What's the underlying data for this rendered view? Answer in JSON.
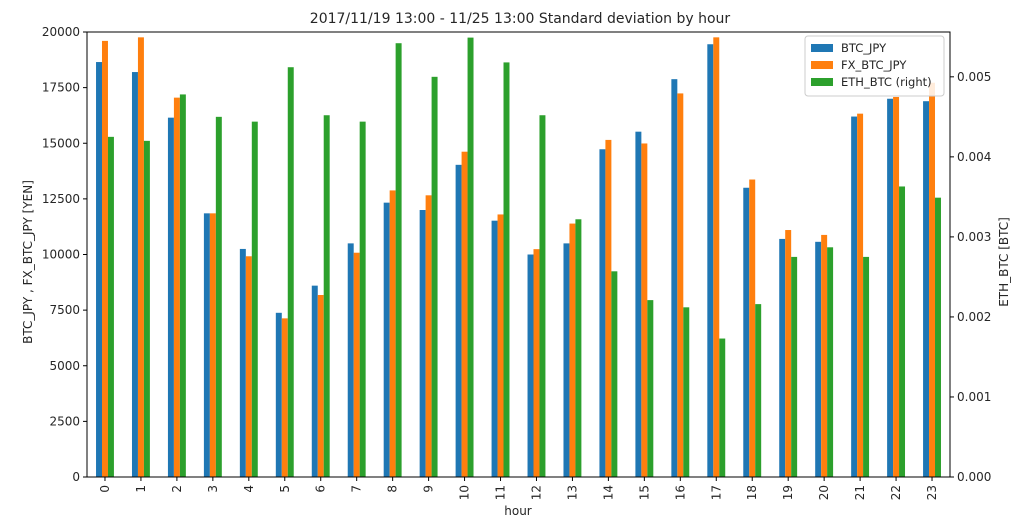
{
  "chart_data": {
    "type": "bar",
    "title": "2017/11/19 13:00 - 11/25 13:00 Standard deviation by hour",
    "xlabel": "hour",
    "ylabel": "BTC_JPY , FX_BTC_JPY [YEN]",
    "y2label": "ETH_BTC [BTC]",
    "ylim": [
      0,
      20000
    ],
    "y2lim": [
      0,
      0.00556
    ],
    "yticks": [
      0,
      2500,
      5000,
      7500,
      10000,
      12500,
      15000,
      17500,
      20000
    ],
    "y2ticks": [
      0.0,
      0.001,
      0.002,
      0.003,
      0.004,
      0.005
    ],
    "y2tick_labels": [
      "0.000",
      "0.001",
      "0.002",
      "0.003",
      "0.004",
      "0.005"
    ],
    "grid": false,
    "legend_position": "top-right",
    "categories": [
      "0",
      "1",
      "2",
      "3",
      "4",
      "5",
      "6",
      "7",
      "8",
      "9",
      "10",
      "11",
      "12",
      "13",
      "14",
      "15",
      "16",
      "17",
      "18",
      "19",
      "20",
      "21",
      "22",
      "23"
    ],
    "series": [
      {
        "name": "BTC_JPY",
        "axis": "left",
        "color": "#1f77b4",
        "values": [
          18650,
          18200,
          16150,
          11850,
          10250,
          7380,
          8600,
          10500,
          12330,
          12000,
          14030,
          11520,
          10000,
          10500,
          14730,
          15520,
          17880,
          19450,
          13000,
          10700,
          10570,
          16200,
          17000,
          16890
        ]
      },
      {
        "name": "FX_BTC_JPY",
        "axis": "left",
        "color": "#ff7f0e",
        "values": [
          19600,
          19760,
          17050,
          11850,
          9920,
          7130,
          8180,
          10080,
          12880,
          12660,
          14620,
          11800,
          10240,
          11390,
          15150,
          14990,
          17240,
          19760,
          13370,
          11100,
          10880,
          16330,
          17080,
          17720
        ]
      },
      {
        "name": "ETH_BTC (right)",
        "axis": "right",
        "color": "#2ca02c",
        "values": [
          0.00425,
          0.0042,
          0.00478,
          0.0045,
          0.00444,
          0.00512,
          0.00452,
          0.00444,
          0.00542,
          0.005,
          0.00549,
          0.00518,
          0.00452,
          0.00322,
          0.00257,
          0.00221,
          0.00212,
          0.00173,
          0.00216,
          0.00275,
          0.00287,
          0.00275,
          0.00363,
          0.00349
        ]
      }
    ]
  }
}
